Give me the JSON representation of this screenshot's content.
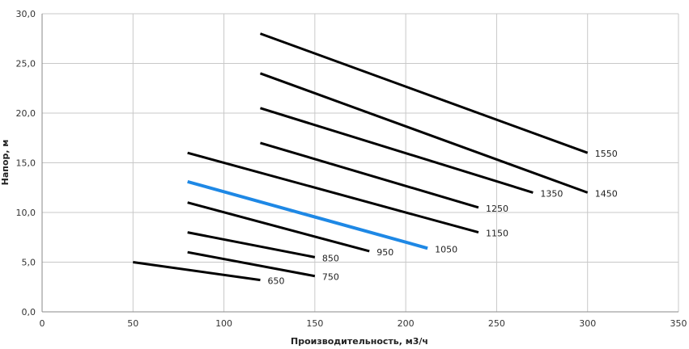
{
  "chart_data": {
    "type": "line",
    "title": "",
    "xlabel": "Производительность,  м3/ч",
    "ylabel": "Напор, м",
    "xlim": [
      0,
      350
    ],
    "ylim": [
      0,
      30
    ],
    "x_ticks": [
      "0",
      "50",
      "100",
      "150",
      "200",
      "250",
      "300",
      "350"
    ],
    "y_ticks": [
      "0,0",
      "5,0",
      "10,0",
      "15,0",
      "20,0",
      "25,0",
      "30,0"
    ],
    "grid": true,
    "legend": "none",
    "default_color": "#000000",
    "highlight_color": "#1e88e5",
    "series": [
      {
        "name": "650",
        "x": [
          50,
          120
        ],
        "y": [
          5.0,
          3.2
        ],
        "highlight": false
      },
      {
        "name": "750",
        "x": [
          80,
          150
        ],
        "y": [
          6.0,
          3.6
        ],
        "highlight": false
      },
      {
        "name": "850",
        "x": [
          80,
          150
        ],
        "y": [
          8.0,
          5.5
        ],
        "highlight": false
      },
      {
        "name": "950",
        "x": [
          80,
          180
        ],
        "y": [
          11.0,
          6.1
        ],
        "highlight": false
      },
      {
        "name": "1050",
        "x": [
          80,
          212
        ],
        "y": [
          13.1,
          6.4
        ],
        "highlight": true
      },
      {
        "name": "1150",
        "x": [
          80,
          240
        ],
        "y": [
          16.0,
          8.0
        ],
        "highlight": false
      },
      {
        "name": "1250",
        "x": [
          120,
          240
        ],
        "y": [
          17.0,
          10.5
        ],
        "highlight": false
      },
      {
        "name": "1350",
        "x": [
          120,
          270
        ],
        "y": [
          20.5,
          12.0
        ],
        "highlight": false
      },
      {
        "name": "1450",
        "x": [
          120,
          300
        ],
        "y": [
          24.0,
          12.0
        ],
        "highlight": false
      },
      {
        "name": "1550",
        "x": [
          120,
          300
        ],
        "y": [
          28.0,
          16.0
        ],
        "highlight": false
      }
    ]
  }
}
